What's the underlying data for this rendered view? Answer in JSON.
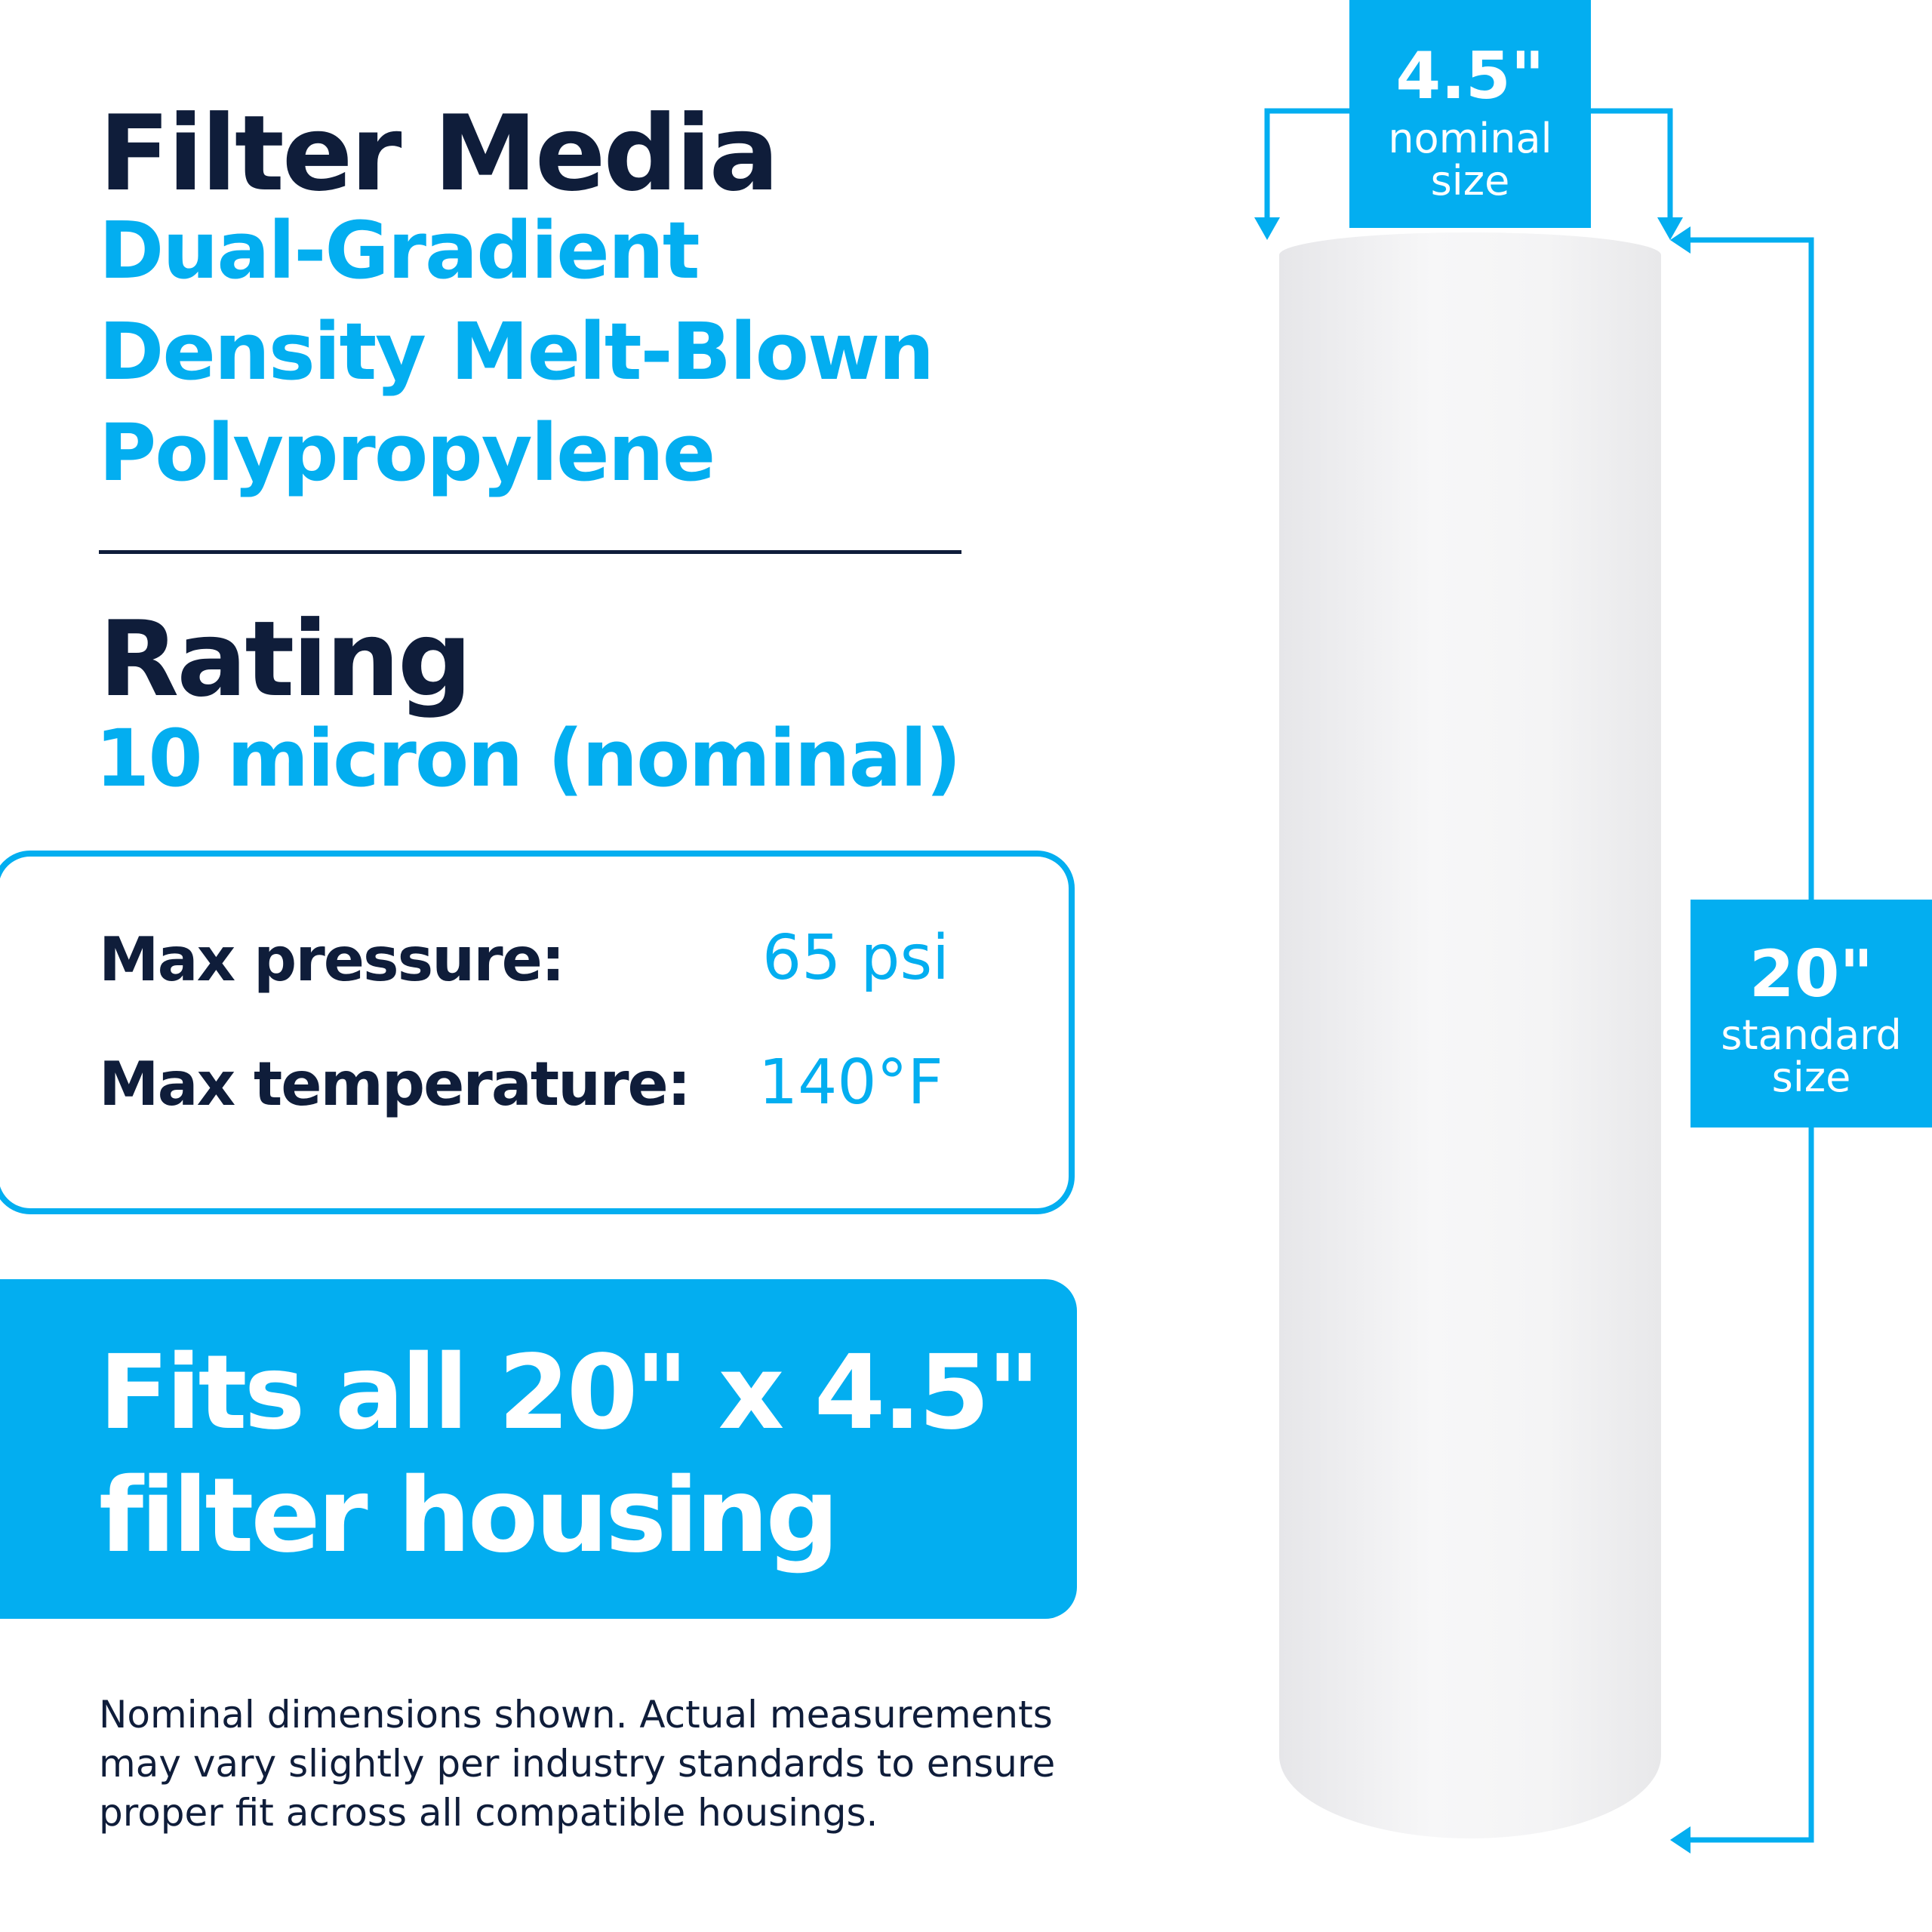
{
  "filter_media": {
    "heading": "Filter Media",
    "lines": [
      "Dual-Gradient",
      "Density Melt-Blown",
      "Polypropylene"
    ]
  },
  "rating": {
    "heading": "Rating",
    "value": "10 micron (nominal)"
  },
  "specs": [
    {
      "label": "Max pressure:",
      "value": "65 psi"
    },
    {
      "label": "Max temperature:",
      "value": "140°F"
    }
  ],
  "banner": {
    "lines": [
      "Fits all 20\" x 4.5\"",
      "filter housing"
    ]
  },
  "note": {
    "lines": [
      "Nominal dimensions shown. Actual measurements",
      "may vary slightly per industry standards to ensure",
      "proper fit across all compatible housings."
    ]
  },
  "diameter_tag": {
    "value": "4.5\"",
    "lines": [
      "nominal",
      "size"
    ]
  },
  "length_tag": {
    "value": "20\"",
    "lines": [
      "standard",
      "size"
    ]
  },
  "colors": {
    "accent": "#03aef0",
    "navy": "#0f1d3a"
  }
}
